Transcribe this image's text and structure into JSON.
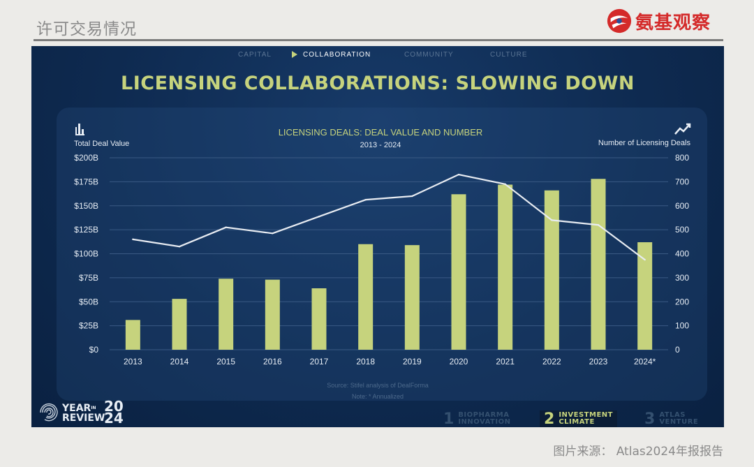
{
  "page": {
    "title": "许可交易情况",
    "brand": "氨基观察",
    "credit": "图片来源：  Atlas2024年报报告"
  },
  "slide": {
    "nav": [
      "CAPITAL",
      "COLLABORATION",
      "COMMUNITY",
      "CULTURE"
    ],
    "nav_active": "COLLABORATION",
    "headline": "LICENSING COLLABORATIONS: SLOWING DOWN",
    "source": "Source: Stifel analysis of DealForma",
    "note": "Note: * Annualized",
    "year_in_review": {
      "line1": "YEAR",
      "in": "IN",
      "line2": "REVIEW",
      "year_top": "20",
      "year_bottom": "24"
    },
    "footer_tabs": [
      {
        "num": "1",
        "label1": "BIOPHARMA",
        "label2": "INNOVATION"
      },
      {
        "num": "2",
        "label1": "INVESTMENT",
        "label2": "CLIMATE"
      },
      {
        "num": "3",
        "label1": "ATLAS",
        "label2": "VENTURE"
      }
    ]
  },
  "chart_data": {
    "type": "bar",
    "title": "LICENSING DEALS: DEAL VALUE AND NUMBER",
    "subtitle": "2013 - 2024",
    "categories": [
      "2013",
      "2014",
      "2015",
      "2016",
      "2017",
      "2018",
      "2019",
      "2020",
      "2021",
      "2022",
      "2023",
      "2024*"
    ],
    "left_axis": {
      "label": "Total Deal Value",
      "range": [
        0,
        200
      ],
      "ticks": [
        0,
        25,
        50,
        75,
        100,
        125,
        150,
        175,
        200
      ],
      "tick_labels": [
        "$0",
        "$25B",
        "$50B",
        "$75B",
        "$100B",
        "$125B",
        "$150B",
        "$175B",
        "$200B"
      ]
    },
    "right_axis": {
      "label": "Number of Licensing Deals",
      "range": [
        0,
        800
      ],
      "ticks": [
        0,
        100,
        200,
        300,
        400,
        500,
        600,
        700,
        800
      ],
      "tick_labels": [
        "0",
        "100",
        "200",
        "300",
        "400",
        "500",
        "600",
        "700",
        "800"
      ]
    },
    "series": [
      {
        "type": "bar",
        "axis": "left",
        "color": "#c6d37d",
        "values": [
          31,
          53,
          74,
          73,
          64,
          110,
          109,
          162,
          172,
          166,
          178,
          112
        ]
      },
      {
        "type": "line",
        "axis": "right",
        "color": "#e8ecf2",
        "values": [
          460,
          430,
          510,
          485,
          555,
          625,
          640,
          730,
          690,
          540,
          520,
          375
        ]
      }
    ],
    "grid": "horizontal",
    "colors": {
      "bars": "#c6d37d",
      "line": "#e8ecf2",
      "grid": "#3a5a84",
      "text": "#e8eef5"
    }
  }
}
